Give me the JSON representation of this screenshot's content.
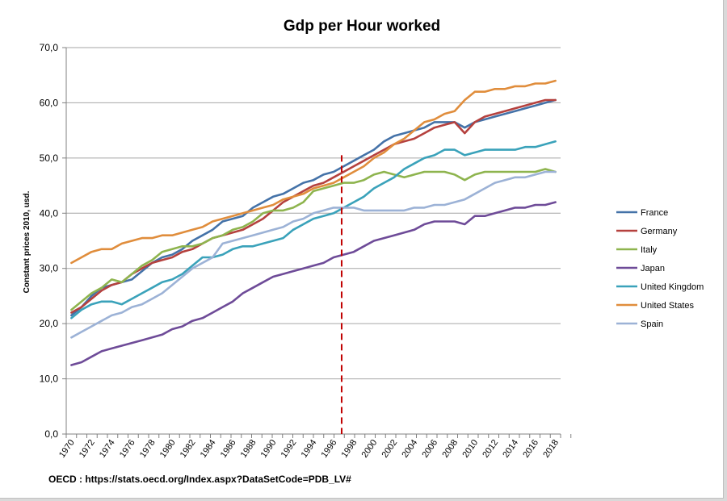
{
  "chart_data": {
    "type": "line",
    "title": "Gdp per Hour worked",
    "ylabel": "Constant prices 2010, usd.",
    "xlabel": "",
    "ylim": [
      0,
      70
    ],
    "yticks": [
      "0,0",
      "10,0",
      "20,0",
      "30,0",
      "40,0",
      "50,0",
      "60,0",
      "70,0"
    ],
    "x": [
      1970,
      1971,
      1972,
      1973,
      1974,
      1975,
      1976,
      1977,
      1978,
      1979,
      1980,
      1981,
      1982,
      1983,
      1984,
      1985,
      1986,
      1987,
      1988,
      1989,
      1990,
      1991,
      1992,
      1993,
      1994,
      1995,
      1996,
      1997,
      1998,
      1999,
      2000,
      2001,
      2002,
      2003,
      2004,
      2005,
      2006,
      2007,
      2008,
      2009,
      2010,
      2011,
      2012,
      2013,
      2014,
      2015,
      2016,
      2017,
      2018
    ],
    "xticks": [
      "1970",
      "1972",
      "1974",
      "1976",
      "1978",
      "1980",
      "1982",
      "1984",
      "1986",
      "1988",
      "1990",
      "1992",
      "1994",
      "1996",
      "1998",
      "2000",
      "2002",
      "2004",
      "2006",
      "2008",
      "2010",
      "2012",
      "2014",
      "2016",
      "2018"
    ],
    "grid": "horizontal",
    "legend_position": "right",
    "reference_line": {
      "x": 1996.8,
      "style": "dashed",
      "color": "#c00000"
    },
    "series": [
      {
        "name": "France",
        "color": "#4472a8",
        "values": [
          21.5,
          23.0,
          25.0,
          26.5,
          27.0,
          27.5,
          28.0,
          29.5,
          31.0,
          32.0,
          32.5,
          33.5,
          35.0,
          36.0,
          37.0,
          38.5,
          39.0,
          39.5,
          41.0,
          42.0,
          43.0,
          43.5,
          44.5,
          45.5,
          46.0,
          47.0,
          47.5,
          48.5,
          49.5,
          50.5,
          51.5,
          53.0,
          54.0,
          54.5,
          55.0,
          55.5,
          56.5,
          56.5,
          56.5,
          55.5,
          56.5,
          57.0,
          57.5,
          58.0,
          58.5,
          59.0,
          59.5,
          60.0,
          60.5
        ]
      },
      {
        "name": "Germany",
        "color": "#b5413e",
        "values": [
          22.0,
          23.0,
          24.5,
          26.0,
          27.0,
          27.5,
          29.0,
          30.0,
          31.0,
          31.5,
          32.0,
          33.0,
          33.5,
          34.5,
          35.5,
          36.0,
          36.5,
          37.0,
          38.0,
          39.0,
          40.5,
          42.0,
          43.0,
          44.0,
          45.0,
          45.5,
          46.5,
          47.5,
          48.5,
          49.5,
          50.5,
          51.5,
          52.5,
          53.0,
          53.5,
          54.5,
          55.5,
          56.0,
          56.5,
          54.5,
          56.5,
          57.5,
          58.0,
          58.5,
          59.0,
          59.5,
          60.0,
          60.5,
          60.5
        ]
      },
      {
        "name": "Italy",
        "color": "#8eb44e",
        "values": [
          22.5,
          24.0,
          25.5,
          26.5,
          28.0,
          27.5,
          29.0,
          30.5,
          31.5,
          33.0,
          33.5,
          34.0,
          34.0,
          34.5,
          35.5,
          36.0,
          37.0,
          37.5,
          38.5,
          40.0,
          40.5,
          40.5,
          41.0,
          42.0,
          44.0,
          44.5,
          45.0,
          45.5,
          45.5,
          46.0,
          47.0,
          47.5,
          47.0,
          46.5,
          47.0,
          47.5,
          47.5,
          47.5,
          47.0,
          46.0,
          47.0,
          47.5,
          47.5,
          47.5,
          47.5,
          47.5,
          47.5,
          48.0,
          47.5
        ]
      },
      {
        "name": "Japan",
        "color": "#6e4b98",
        "values": [
          12.5,
          13.0,
          14.0,
          15.0,
          15.5,
          16.0,
          16.5,
          17.0,
          17.5,
          18.0,
          19.0,
          19.5,
          20.5,
          21.0,
          22.0,
          23.0,
          24.0,
          25.5,
          26.5,
          27.5,
          28.5,
          29.0,
          29.5,
          30.0,
          30.5,
          31.0,
          32.0,
          32.5,
          33.0,
          34.0,
          35.0,
          35.5,
          36.0,
          36.5,
          37.0,
          38.0,
          38.5,
          38.5,
          38.5,
          38.0,
          39.5,
          39.5,
          40.0,
          40.5,
          41.0,
          41.0,
          41.5,
          41.5,
          42.0
        ]
      },
      {
        "name": "United Kingdom",
        "color": "#3aa2ba",
        "values": [
          21.0,
          22.5,
          23.5,
          24.0,
          24.0,
          23.5,
          24.5,
          25.5,
          26.5,
          27.5,
          28.0,
          29.0,
          30.5,
          32.0,
          32.0,
          32.5,
          33.5,
          34.0,
          34.0,
          34.5,
          35.0,
          35.5,
          37.0,
          38.0,
          39.0,
          39.5,
          40.0,
          41.0,
          42.0,
          43.0,
          44.5,
          45.5,
          46.5,
          48.0,
          49.0,
          50.0,
          50.5,
          51.5,
          51.5,
          50.5,
          51.0,
          51.5,
          51.5,
          51.5,
          51.5,
          52.0,
          52.0,
          52.5,
          53.0
        ]
      },
      {
        "name": "United States",
        "color": "#e08d3c",
        "values": [
          31.0,
          32.0,
          33.0,
          33.5,
          33.5,
          34.5,
          35.0,
          35.5,
          35.5,
          36.0,
          36.0,
          36.5,
          37.0,
          37.5,
          38.5,
          39.0,
          39.5,
          40.0,
          40.5,
          41.0,
          41.5,
          42.5,
          43.0,
          43.5,
          44.5,
          45.0,
          45.5,
          46.5,
          47.5,
          48.5,
          50.0,
          51.0,
          52.5,
          53.5,
          55.0,
          56.5,
          57.0,
          58.0,
          58.5,
          60.5,
          62.0,
          62.0,
          62.5,
          62.5,
          63.0,
          63.0,
          63.5,
          63.5,
          64.0
        ]
      },
      {
        "name": "Spain",
        "color": "#9cb2d6",
        "values": [
          17.5,
          18.5,
          19.5,
          20.5,
          21.5,
          22.0,
          23.0,
          23.5,
          24.5,
          25.5,
          27.0,
          28.5,
          30.0,
          31.0,
          32.0,
          34.5,
          35.0,
          35.5,
          36.0,
          36.5,
          37.0,
          37.5,
          38.5,
          39.0,
          40.0,
          40.5,
          41.0,
          41.0,
          41.0,
          40.5,
          40.5,
          40.5,
          40.5,
          40.5,
          41.0,
          41.0,
          41.5,
          41.5,
          42.0,
          42.5,
          43.5,
          44.5,
          45.5,
          46.0,
          46.5,
          46.5,
          47.0,
          47.5,
          47.5
        ]
      }
    ],
    "source": "OECD : https://stats.oecd.org/Index.aspx?DataSetCode=PDB_LV#"
  }
}
